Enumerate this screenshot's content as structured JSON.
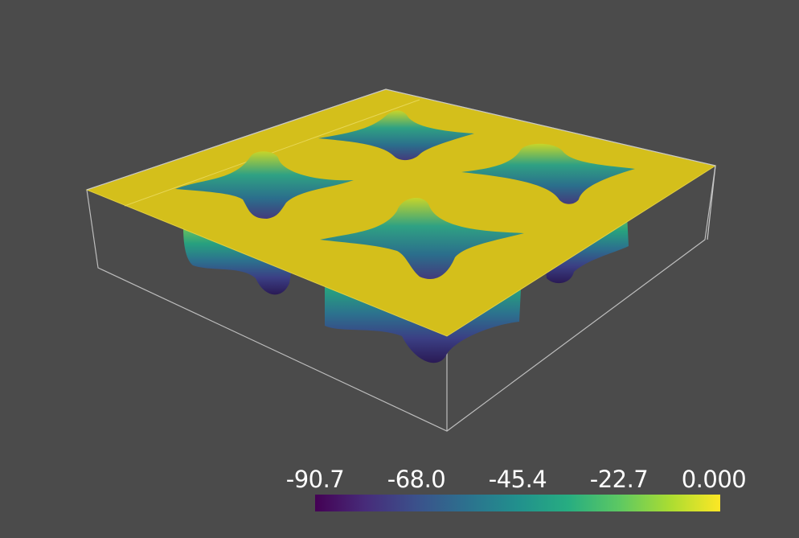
{
  "scene": {
    "background": "#4b4b4b",
    "surface_color": "#d4bf1b",
    "outline_color": "#bdbdbd",
    "colormap": "viridis"
  },
  "colorbar": {
    "ticks": [
      "-90.7",
      "-68.0",
      "-45.4",
      "-22.7",
      "0.000"
    ],
    "range": [
      -90.7,
      0.0
    ],
    "colors": [
      "#440154",
      "#472c7a",
      "#3b518b",
      "#2c718e",
      "#21908d",
      "#27ad81",
      "#5cc863",
      "#aadc32",
      "#fde725"
    ]
  }
}
